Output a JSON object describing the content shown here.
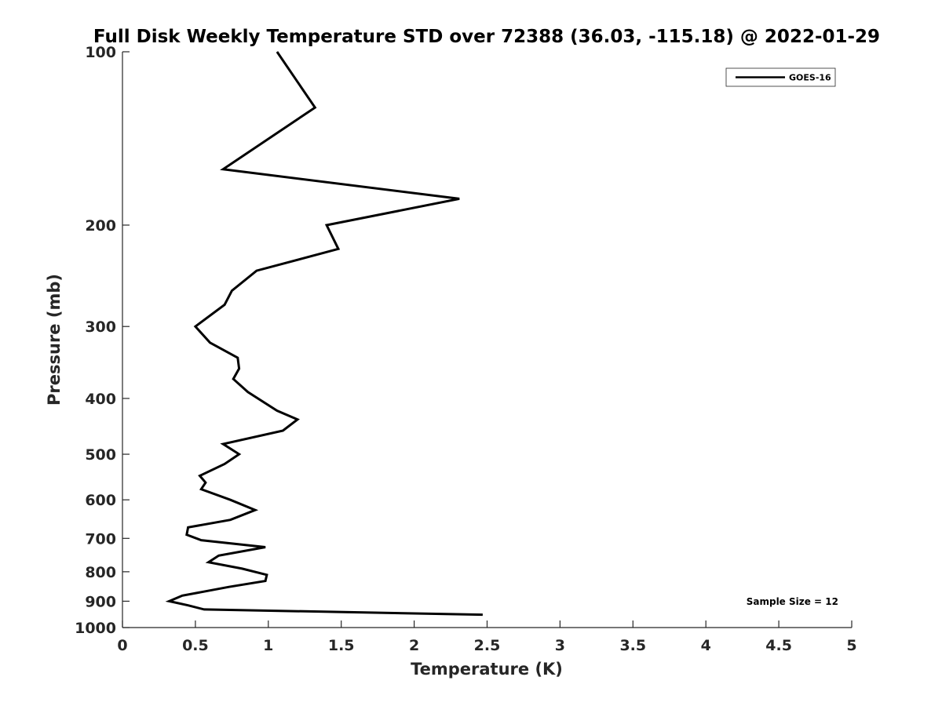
{
  "chart_data": {
    "type": "line",
    "title": "Full Disk Weekly Temperature STD over 72388 (36.03, -115.18) @ 2022-01-29",
    "xlabel": "Temperature (K)",
    "ylabel": "Pressure (mb)",
    "xlim": [
      0,
      5
    ],
    "ylim": [
      1000,
      100
    ],
    "y_scale": "log",
    "y_reversed": true,
    "grid": false,
    "legend_position": "top-right",
    "x_ticks": [
      "0",
      "0.5",
      "1",
      "1.5",
      "2",
      "2.5",
      "3",
      "3.5",
      "4",
      "4.5",
      "5"
    ],
    "y_ticks": [
      "100",
      "200",
      "300",
      "400",
      "500",
      "600",
      "700",
      "800",
      "900",
      "1000"
    ],
    "annotation": "Sample Size = 12",
    "series": [
      {
        "name": "GOES-16",
        "color": "#000000",
        "x": [
          1.06,
          1.32,
          0.69,
          2.31,
          1.4,
          1.48,
          0.92,
          0.75,
          0.7,
          0.5,
          0.6,
          0.79,
          0.8,
          0.76,
          0.86,
          1.06,
          1.2,
          1.1,
          0.69,
          0.8,
          0.7,
          0.53,
          0.57,
          0.54,
          0.74,
          0.91,
          0.74,
          0.45,
          0.44,
          0.54,
          0.98,
          0.66,
          0.59,
          0.82,
          0.99,
          0.98,
          0.73,
          0.41,
          0.32,
          0.45,
          0.56,
          2.47
        ],
        "y": [
          100,
          125,
          160,
          180,
          200,
          220,
          240,
          260,
          275,
          300,
          320,
          340,
          355,
          370,
          390,
          420,
          435,
          455,
          480,
          500,
          520,
          545,
          560,
          575,
          600,
          625,
          650,
          670,
          690,
          705,
          725,
          750,
          770,
          790,
          810,
          830,
          850,
          880,
          900,
          915,
          930,
          950
        ]
      }
    ]
  }
}
